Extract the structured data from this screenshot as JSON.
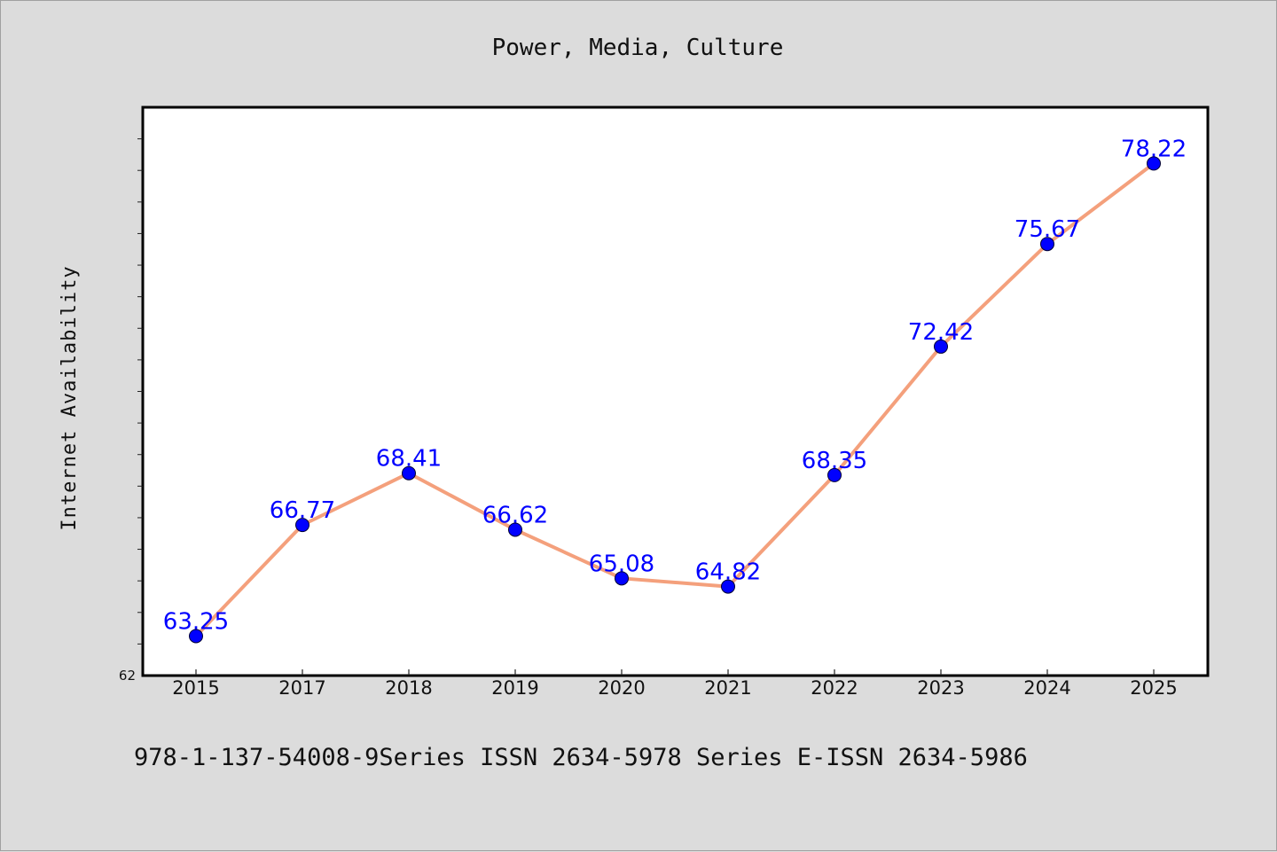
{
  "chart_data": {
    "type": "line",
    "title": "Power, Media, Culture",
    "xlabel": "",
    "ylabel": "Internet Availability",
    "categories": [
      "2015",
      "2017",
      "2018",
      "2019",
      "2020",
      "2021",
      "2022",
      "2023",
      "2024",
      "2025"
    ],
    "series": [
      {
        "values": [
          63.25,
          66.77,
          68.41,
          66.62,
          65.08,
          64.82,
          68.35,
          72.42,
          75.67,
          78.22
        ],
        "labels": [
          "63.25",
          "66.77",
          "68.41",
          "66.62",
          "65.08",
          "64.82",
          "68.35",
          "72.42",
          "75.67",
          "78.22"
        ]
      }
    ],
    "ylim": [
      62,
      80
    ],
    "yticks_labeled": [
      "62"
    ],
    "grid": false,
    "line_color": "#f4a07c",
    "marker_color": "#0000ff",
    "label_color": "#0000ff"
  },
  "footer": {
    "text": "978-1-137-54008-9Series ISSN 2634-5978 Series E-ISSN 2634-5986"
  }
}
